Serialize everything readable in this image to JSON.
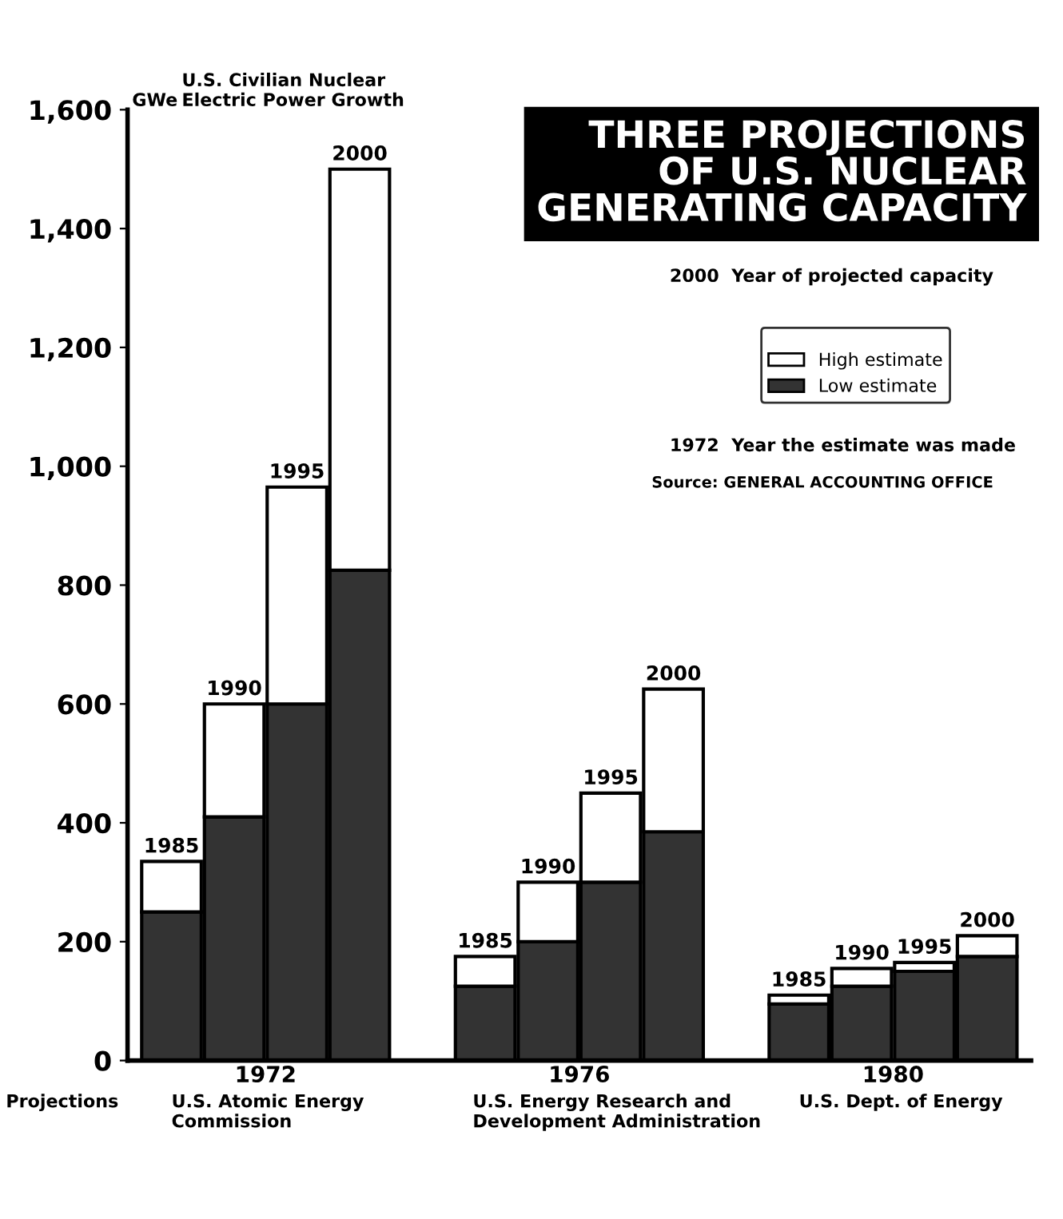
{
  "chart_data": {
    "type": "bar",
    "stacked": true,
    "title": "THREE PROJECTIONS\nOF U.S. NUCLEAR\nGENERATING CAPACITY",
    "subtitle": "U.S. Civilian Nuclear\nElectric Power Growth",
    "ylabel": "GWe",
    "categories": [
      "1985",
      "1990",
      "1995",
      "2000",
      null,
      "1985",
      "1990",
      "1995",
      "2000",
      null,
      "1985",
      "1990",
      "1995",
      "2000"
    ],
    "series": [
      {
        "name": "Low estimate",
        "color": "#333333",
        "values": [
          250,
          410,
          600,
          825,
          null,
          125,
          200,
          300,
          385,
          null,
          95,
          125,
          150,
          175
        ]
      },
      {
        "name": "High estimate",
        "color": "#ffffff",
        "values": [
          85,
          190,
          365,
          675,
          null,
          50,
          100,
          150,
          240,
          null,
          15,
          30,
          15,
          35
        ]
      }
    ],
    "ylim": [
      0,
      1600
    ],
    "yticks": [
      0,
      200,
      400,
      600,
      800,
      {
        "value": 1000,
        "label": "1,000"
      },
      {
        "value": 1200,
        "label": "1,200"
      },
      {
        "value": 1400,
        "label": "1,400"
      },
      {
        "value": 1600,
        "label": "1,600"
      }
    ],
    "tick_labels": "y",
    "grid": false,
    "legend": "top right",
    "annotations": [
      "1972",
      "U.S. Atomic Energy\nCommission",
      "1976",
      "U.S. Energy Research and\nDevelopment Administration",
      "1980",
      "U.S. Dept. of Energy",
      "Projections",
      "2000  Year of projected capacity",
      "1972  Year the estimate was made",
      "Source: GENERAL ACCOUNTING OFFICE"
    ]
  }
}
